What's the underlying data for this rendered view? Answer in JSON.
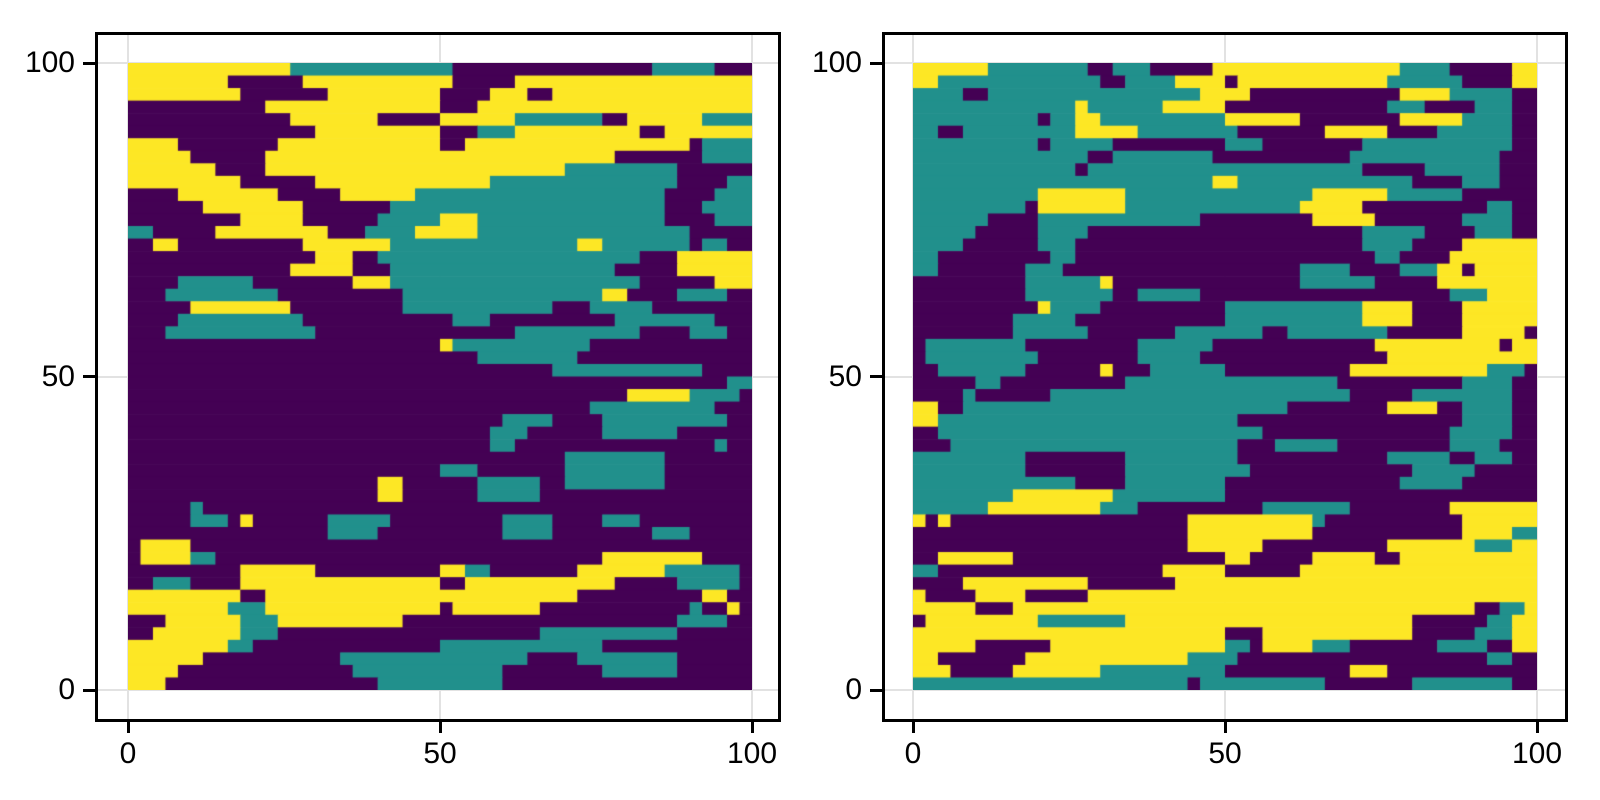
{
  "figure": {
    "background": "#ffffff",
    "kind": "two-panel categorical heatmap figure"
  },
  "palette": {
    "facies_colors": [
      "#440154",
      "#21908c",
      "#fde725"
    ],
    "grid_color": "#e2e2e2",
    "spine_color": "#000000",
    "tick_label_color": "#000000"
  },
  "chart_data": [
    {
      "type": "heatmap",
      "panel": "left",
      "title": "",
      "xlabel": "",
      "ylabel": "",
      "x_ticks": [
        0,
        50,
        100
      ],
      "y_ticks": [
        0,
        50,
        100
      ],
      "x_tick_labels": [
        "0",
        "50",
        "100"
      ],
      "y_tick_labels": [
        "0",
        "50",
        "100"
      ],
      "x_range": [
        -5.3,
        104.8
      ],
      "y_range": [
        -5.1,
        104.9
      ],
      "data_extent_x": [
        0,
        100
      ],
      "data_extent_y": [
        0,
        100
      ],
      "n_categories": 3,
      "legend": "none",
      "grid": "on",
      "encoding": "rows listed top (y=100) to bottom (y=0); tokens value*runlength; value 0/1/2 indexes palette.facies_colors; 50x50 downsample of 100x100 field",
      "rows": [
        "2*13 1*13 0*16 1*5 0*3",
        "2*8 0*6 2*12 0*5 2*19",
        "2*9 0*7 2*9 0*4 2*3 0*2 2*16",
        "0*11 2*14 0*3 2*22",
        "0*13 2*7 0*5 2*6 1*7 0*2 2*6 1*4",
        "0*15 2*10 0*3 1*3 2*10 0*2 2*7",
        "2*4 0*8 2*13 0*2 2*18 0*1 1*4",
        "2*5 0*6 2*28 0*7 1*4",
        "2*7 0*4 2*24 1*9 0*6",
        "2*9 0*6 2*14 1*15 0*4 1*2",
        "0*4 2*8 0*5 2*6 1*20 0*4 1*3",
        "0*6 2*8 0*7 1*22 0*3 1*4",
        "0*9 2*5 0*6 1*5 2*3 1*15 0*4 1*3",
        "1*2 0*5 2*9 0*3 1*4 2*5 1*17 0*5",
        "0*2 2*2 0*10 2*7 1*15 2*2 1*7 0*1 1*2 0*2",
        "0*15 2*3 0*2 1*21 0*3 2*6",
        "0*13 2*5 0*3 1*18 0*5 2*6",
        "0*4 1*6 0*8 2*3 1*20 0*6 2*3",
        "0*3 1*9 0*10 1*16 2*2 0*4 1*4 0*2",
        "0*5 2*8 0*9 1*12 0*3 1*5 0*8",
        "0*4 1*10 0*12 1*3 0*10 1*8 0*3",
        "0*3 1*12 0*16 1*10 0*4 1*3 0*2",
        "0*25 2*1 1*11 0*13",
        "0*28 1*8 0*14",
        "0*34 1*12 0*4",
        "0*48 1*2",
        "0*40 2*5 1*4 0*1",
        "0*37 1*10 0*3",
        "0*30 1*4 0*4 1*10 0*2",
        "0*29 1*3 0*6 1*6 0*6",
        "0*29 1*2 0*16 1*1 0*2",
        "0*35 1*8 0*7",
        "0*25 1*3 0*7 1*8 0*7",
        "0*20 2*2 0*6 1*5 0*2 1*8 0*7",
        "0*20 2*2 0*6 1*5 0*17",
        "0*5 1*1 0*44",
        "0*5 1*3 0*1 2*1 0*6 1*5 0*9 1*4 0*4 1*3 0*9",
        "0*16 1*4 0*10 1*4 0*8 1*3 0*5",
        "0*1 2*4 0*45",
        "0*1 2*4 1*2 0*31 2*8 0*4",
        "0*9 2*6 0*10 2*2 1*2 0*7 2*7 1*6 0*1",
        "0*2 1*3 0*4 2*16 0*2 2*12 0*5 1*5 0*1",
        "2*9 0*2 2*25 0*10 2*2 0*2",
        "2*8 1*3 2*14 0*1 2*7 0*12 1*1 0*2 2*1 0*1",
        "0*3 2*6 1*3 2*10 0*22 1*4 0*2",
        "0*2 2*7 1*3 0*21 1*11 0*6",
        "2*8 1*2 0*15 1*13 0*12",
        "2*6 0*11 1*15 0*4 1*8 0*6",
        "2*4 0*14 1*12 0*8 1*6 0*6",
        "2*3 0*17 1*10 0*20"
      ]
    },
    {
      "type": "heatmap",
      "panel": "right",
      "title": "",
      "xlabel": "",
      "ylabel": "",
      "x_ticks": [
        0,
        50,
        100
      ],
      "y_ticks": [
        0,
        50,
        100
      ],
      "x_tick_labels": [
        "0",
        "50",
        "100"
      ],
      "y_tick_labels": [
        "0",
        "50",
        "100"
      ],
      "x_range": [
        -5.3,
        104.8
      ],
      "y_range": [
        -5.1,
        104.9
      ],
      "data_extent_x": [
        0,
        100
      ],
      "data_extent_y": [
        0,
        100
      ],
      "n_categories": 3,
      "legend": "none",
      "grid": "on",
      "encoding": "rows listed top (y=100) to bottom (y=0); tokens value*runlength; value 0/1/2 indexes palette.facies_colors; 50x50 downsample of 100x100 field",
      "rows": [
        "2*6 1*8 0*2 1*3 0*5 2*15 1*4 0*5 2*2",
        "2*2 1*13 0*2 1*4 2*4 0*1 2*12 1*6 0*4 2*2",
        "1*4 0*2 1*17 2*4 0*12 2*4 1*5 0*2",
        "1*13 2*1 1*6 2*5 0*13 1*3 0*4 1*3 0*2",
        "1*10 0*1 1*2 2*2 1*10 2*6 0*8 2*5 1*4 0*2",
        "1*2 0*2 1*9 2*5 1*8 0*7 2*5 0*4 1*6 0*2",
        "1*10 0*1 1*5 0*9 1*3 0*8 1*12 0*2",
        "1*14 0*2 1*8 0*11 1*12 0*3",
        "1*13 0*1 1*22 0*5 1*6 0*3",
        "1*24 2*2 1*14 0*4 1*3 0*3",
        "1*10 2*7 1*15 2*6 1*6 0*6",
        "1*9 0*1 2*7 1*14 2*5 0*10 1*2 0*2",
        "1*6 0*4 1*13 0*9 2*5 0*7 1*4 0*2",
        "1*5 0*5 1*4 0*22 1*5 0*4 1*3 0*2",
        "1*4 0*6 1*3 0*23 1*4 0*4 2*6",
        "1*2 0*9 1*2 0*24 1*2 0*4 2*7",
        "1*2 0*7 1*3 0*19 1*4 0*4 1*3 2*2 0*1 2*5",
        "0*9 1*6 2*1 0*15 1*6 0*5 2*8",
        "0*9 1*7 0*2 1*5 0*20 1*3 2*4",
        "0*10 2*1 1*4 0*10 1*11 2*4 0*4 2*6",
        "0*8 1*5 0*12 1*11 2*4 0*4 2*6",
        "0*8 1*6 0*7 1*7 0*2 1*8 0*6 2*5 0*1",
        "0*1 1*8 0*9 1*6 0*13 2*10 0*1 2*2",
        "0*1 1*9 0*8 1*5 0*15 2*12",
        "0*2 1*7 0*6 2*1 0*3 1*6 0*10 2*11 1*3 0*1",
        "0*5 1*2 0*10 1*17 0*10 1*4 0*2",
        "0*4 1*1 0*6 1*24 0*5 1*8 0*2",
        "2*2 0*2 1*26 0*8 2*4 0*2 1*4 0*2",
        "2*2 1*24 0*18 1*4 0*2",
        "0*2 1*26 0*15 1*5 0*2",
        "0*3 1*23 0*3 1*5 0*9 1*4 0*3",
        "1*9 0*8 1*9 0*12 1*5 0*2 1*3 0*2",
        "1*9 0*8 1*10 0*13 1*5 0*5",
        "1*13 0*4 1*8 0*14 1*5 0*6",
        "1*8 2*8 1*9 0*25",
        "1*6 2*9 1*3 0*10 1*7 0*8 2*7",
        "2*1 0*1 2*1 0*19 2*10 1*1 0*11 2*6",
        "0*22 2*10 0*12 2*4 1*2",
        "0*22 2*6 0*10 2*7 1*3 2*2",
        "0*2 2*6 0*17 2*2 0*5 2*5 0*2 2*11",
        "1*2 0*18 2*5 0*6 2*19",
        "0*4 2*10 0*7 2*29",
        "2*1 0*4 2*4 0*5 2*36",
        "2*5 0*3 2*37 0*2 1*2 2*1",
        "0*1 2*9 1*7 2*23 0*6 1*2 2*2",
        "2*25 0*3 2*12 0*5 1*3 2*2",
        "2*5 0*6 2*14 1*2 0*1 2*4 1*3 0*7 1*4 0*2 2*2",
        "2*2 0*7 2*13 1*4 0*20 1*2 0*2",
        "2*3 0*5 2*7 1*10 0*10 2*3 0*12",
        "1*22 0*1 1*10 0*7 1*8 0*2"
      ]
    }
  ]
}
